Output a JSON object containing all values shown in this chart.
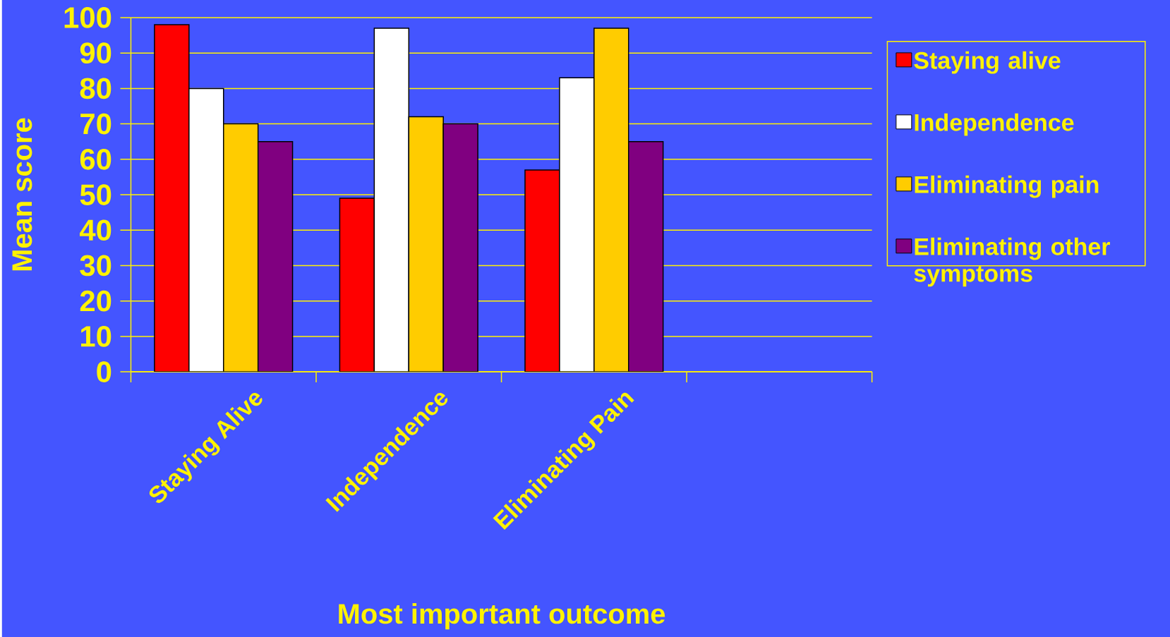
{
  "chart_data": {
    "type": "bar",
    "xlabel": "Most important outcome",
    "ylabel": "Mean score",
    "categories": [
      "Staying Alive",
      "Independence",
      "Eliminating Pain",
      null
    ],
    "series": [
      {
        "name": "Staying alive",
        "color": "#ff0000",
        "values": [
          98,
          49,
          57,
          null
        ]
      },
      {
        "name": "Independence",
        "color": "#ffffff",
        "values": [
          80,
          97,
          83,
          null
        ]
      },
      {
        "name": "Eliminating pain",
        "color": "#ffcc00",
        "values": [
          70,
          72,
          97,
          null
        ]
      },
      {
        "name": "Eliminating other symptoms",
        "color": "#800080",
        "values": [
          65,
          70,
          65,
          null
        ]
      }
    ],
    "ylim": [
      0,
      100
    ],
    "yticks": [
      0,
      10,
      20,
      30,
      40,
      50,
      60,
      70,
      80,
      90,
      100
    ],
    "grid": "y",
    "legend": "right"
  }
}
